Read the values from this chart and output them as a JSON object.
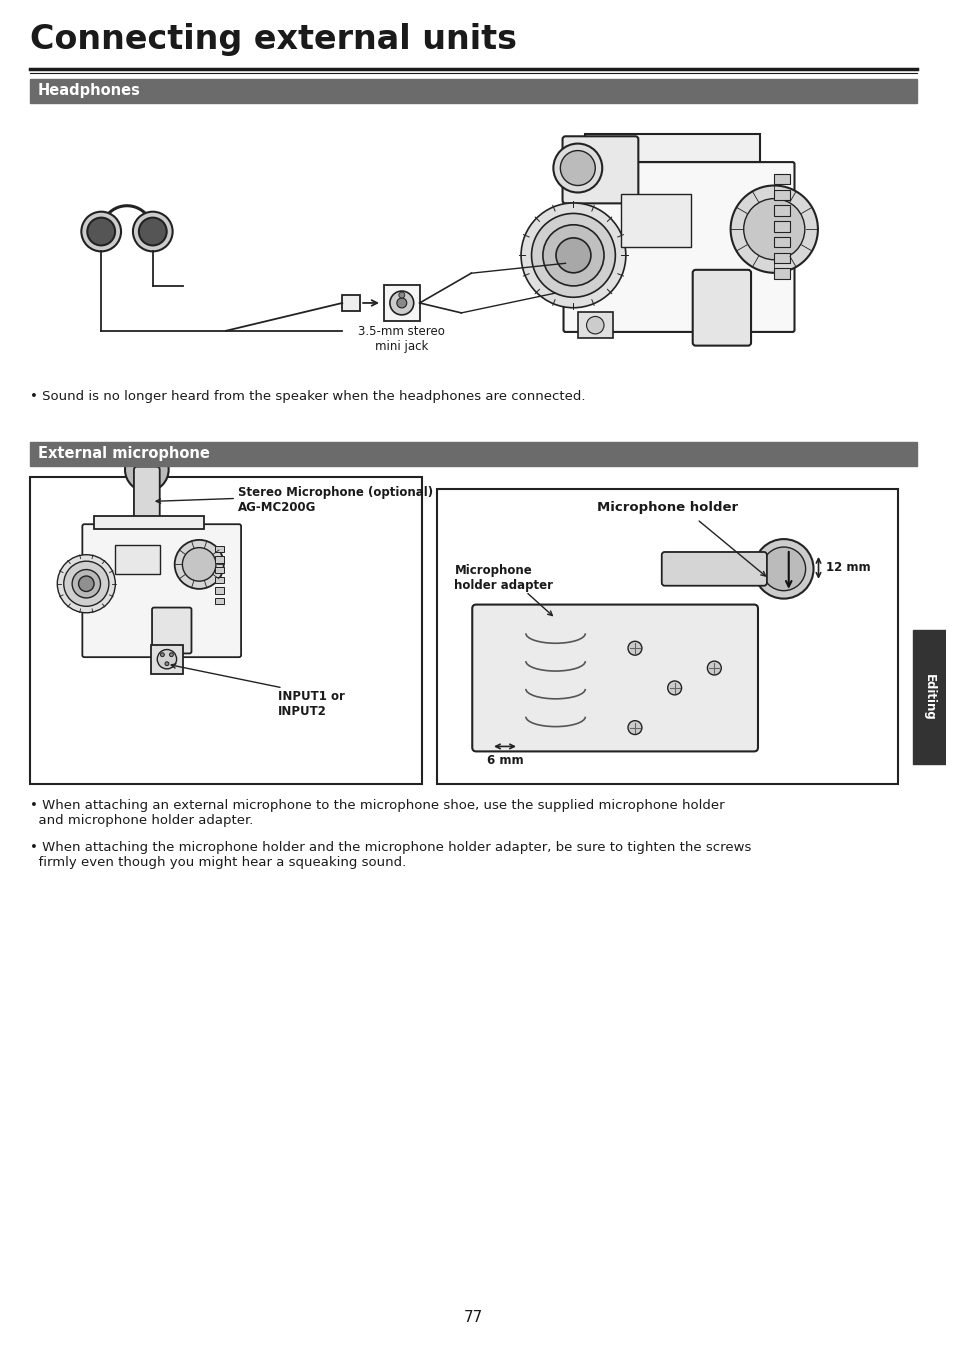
{
  "title": "Connecting external units",
  "section1": "Headphones",
  "section2": "External microphone",
  "label_mini_jack": "3.5-mm stereo\nmini jack",
  "bullet1": "• Sound is no longer heard from the speaker when the headphones are connected.",
  "label_stereo_mic": "Stereo Microphone (optional)\nAG-MC200G",
  "label_input": "INPUT1 or\nINPUT2",
  "label_mic_holder": "Microphone holder",
  "label_mic_holder_adapter": "Microphone\nholder adapter",
  "label_12mm": "12 mm",
  "label_6mm": "6 mm",
  "bullet2": "• When attaching an external microphone to the microphone shoe, use the supplied microphone holder\n  and microphone holder adapter.",
  "bullet3": "• When attaching the microphone holder and the microphone holder adapter, be sure to tighten the screws\n  firmly even though you might hear a squeaking sound.",
  "sidebar_text": "Editing",
  "page_number": "77",
  "bg_color": "#ffffff",
  "section_bg": "#6b6b6b",
  "section_text_color": "#ffffff",
  "title_color": "#1a1a1a",
  "body_color": "#1a1a1a",
  "line_color": "#1a1a1a",
  "sidebar_bg": "#333333"
}
